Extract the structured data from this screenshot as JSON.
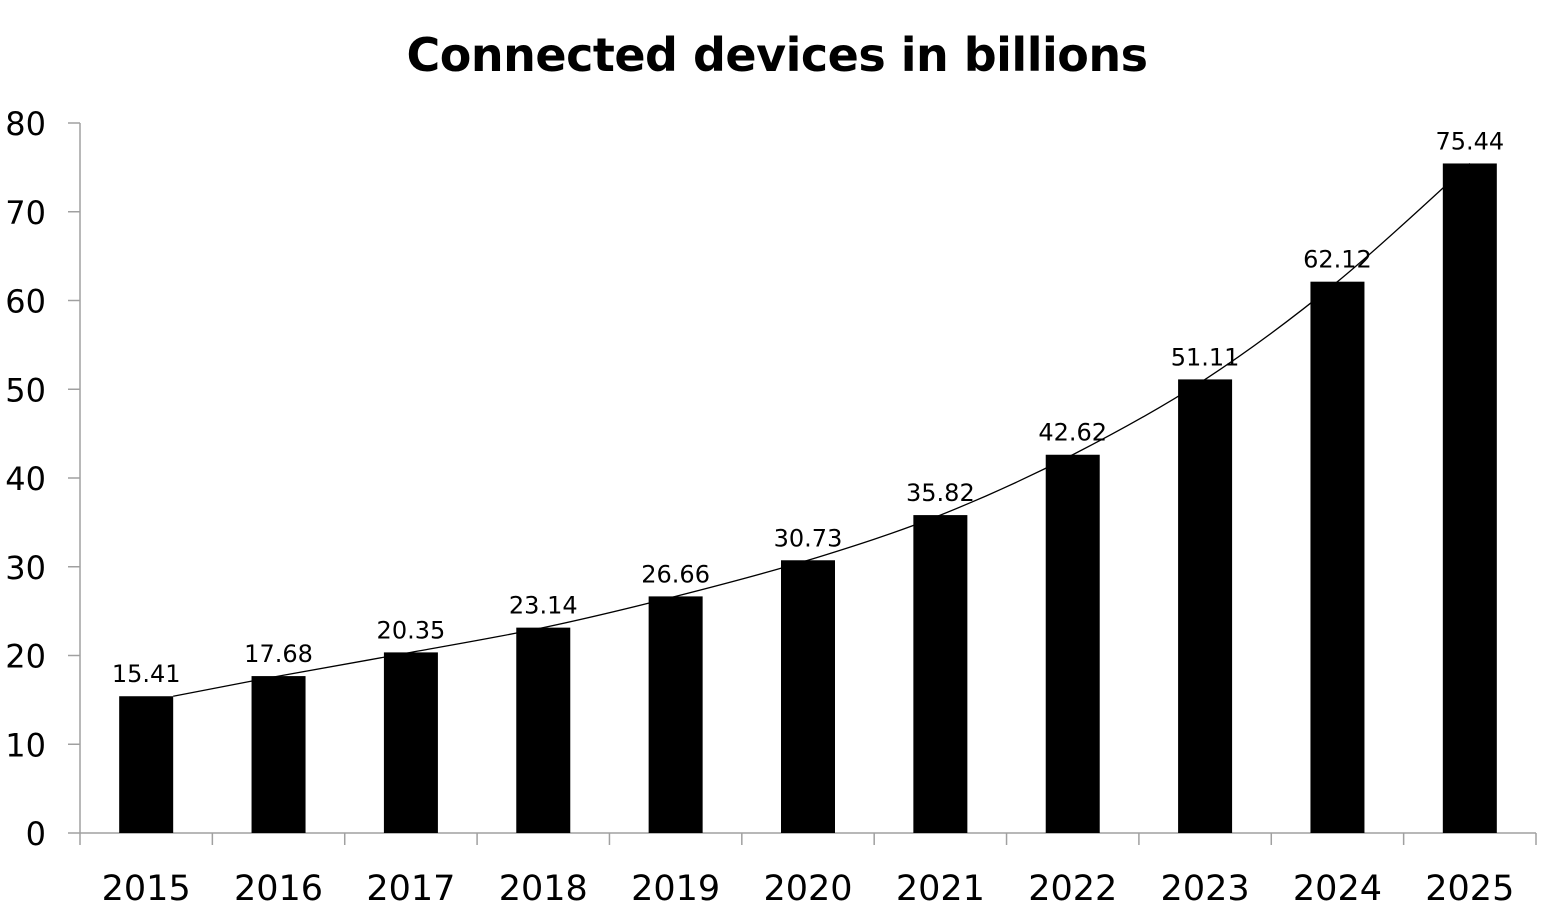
{
  "chart_data": {
    "type": "bar",
    "title": "Connected devices in billions",
    "xlabel": "",
    "ylabel": "",
    "categories": [
      "2015",
      "2016",
      "2017",
      "2018",
      "2019",
      "2020",
      "2021",
      "2022",
      "2023",
      "2024",
      "2025"
    ],
    "values": [
      15.41,
      17.68,
      20.35,
      23.14,
      26.66,
      30.73,
      35.82,
      42.62,
      51.11,
      62.12,
      75.44
    ],
    "data_labels": [
      "15.41",
      "17.68",
      "20.35",
      "23.14",
      "26.66",
      "30.73",
      "35.82",
      "42.62",
      "51.11",
      "62.12",
      "75.44"
    ],
    "ylim": [
      0,
      80
    ],
    "yticks": [
      0,
      10,
      20,
      30,
      40,
      50,
      60,
      70,
      80
    ],
    "grid": false,
    "legend": "none",
    "trendline": true,
    "colors": {
      "bar": "#000000",
      "trendline": "#000000",
      "axis": "#a0a0a0"
    }
  }
}
